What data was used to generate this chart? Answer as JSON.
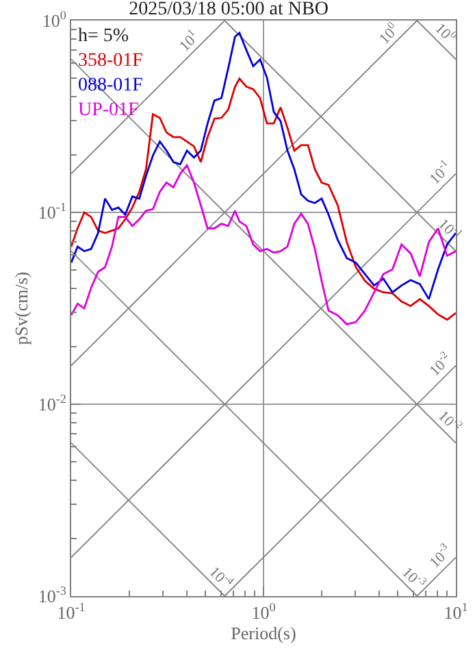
{
  "chart_data": {
    "type": "line",
    "title": "2025/03/18 05:00 at NBO",
    "xlabel": "Period(s)",
    "ylabel": "pSv(cm/s)",
    "log": "xy",
    "grid": true,
    "legend": "top left",
    "xlim": [
      0.1,
      10
    ],
    "ylim": [
      0.001,
      1
    ],
    "xticks": [
      {
        "value": 0.1,
        "label": "10$^{-1}$"
      },
      {
        "value": 0.2,
        "label": null
      },
      {
        "value": 0.3,
        "label": null
      },
      {
        "value": 0.4,
        "label": null
      },
      {
        "value": 0.5,
        "label": null
      },
      {
        "value": 0.6,
        "label": null
      },
      {
        "value": 0.7,
        "label": null
      },
      {
        "value": 0.8,
        "label": null
      },
      {
        "value": 0.9,
        "label": null
      },
      {
        "value": 1,
        "label": "10$^{0}$"
      },
      {
        "value": 2,
        "label": null
      },
      {
        "value": 3,
        "label": null
      },
      {
        "value": 4,
        "label": null
      },
      {
        "value": 5,
        "label": null
      },
      {
        "value": 6,
        "label": null
      },
      {
        "value": 7,
        "label": null
      },
      {
        "value": 8,
        "label": null
      },
      {
        "value": 9,
        "label": null
      },
      {
        "value": 10,
        "label": "10$^{1}$"
      }
    ],
    "yticks": [
      {
        "value": 0.001,
        "label": "10$^{-3}$"
      },
      {
        "value": 0.002,
        "label": null
      },
      {
        "value": 0.003,
        "label": null
      },
      {
        "value": 0.004,
        "label": null
      },
      {
        "value": 0.005,
        "label": null
      },
      {
        "value": 0.006,
        "label": null
      },
      {
        "value": 0.007,
        "label": null
      },
      {
        "value": 0.008,
        "label": null
      },
      {
        "value": 0.009,
        "label": null
      },
      {
        "value": 0.01,
        "label": "10$^{-2}$"
      },
      {
        "value": 0.02,
        "label": null
      },
      {
        "value": 0.03,
        "label": null
      },
      {
        "value": 0.04,
        "label": null
      },
      {
        "value": 0.05,
        "label": null
      },
      {
        "value": 0.06,
        "label": null
      },
      {
        "value": 0.07,
        "label": null
      },
      {
        "value": 0.08,
        "label": null
      },
      {
        "value": 0.09,
        "label": null
      },
      {
        "value": 0.1,
        "label": "10$^{-1}$"
      },
      {
        "value": 0.2,
        "label": null
      },
      {
        "value": 0.3,
        "label": null
      },
      {
        "value": 0.4,
        "label": null
      },
      {
        "value": 0.5,
        "label": null
      },
      {
        "value": 0.6,
        "label": null
      },
      {
        "value": 0.7,
        "label": null
      },
      {
        "value": 0.8,
        "label": null
      },
      {
        "value": 0.9,
        "label": null
      },
      {
        "value": 1,
        "label": "10$^{0}$"
      }
    ],
    "annotations": [
      "h= 5%",
      {
        "text": "10$^{1}$",
        "x": 0.45,
        "y": 0.716
      },
      {
        "text": "10$^{0}$",
        "x": 4.9,
        "y": 0.78
      },
      {
        "text": "10$^{-1}$",
        "x": 9.2,
        "y": 0.146
      },
      {
        "text": "10$^{-2}$",
        "x": 9.2,
        "y": 0.0146
      },
      {
        "text": "10$^{-3}$",
        "x": 9.2,
        "y": 0.00146
      },
      {
        "text": "10$^{0}$",
        "x": 8,
        "y": 0.785
      },
      {
        "text": "10$^{-1}$",
        "x": 8.5,
        "y": 0.0739
      },
      {
        "text": "10$^{-2}$",
        "x": 8.5,
        "y": 0.00739
      },
      {
        "text": "10$^{-3}$",
        "x": 5.5,
        "y": 0.00114
      },
      {
        "text": "10$^{-4}$",
        "x": 0.55,
        "y": 0.00114
      }
    ],
    "x": [
      0.1,
      0.108,
      0.117,
      0.127,
      0.138,
      0.15,
      0.163,
      0.176,
      0.191,
      0.208,
      0.226,
      0.245,
      0.266,
      0.289,
      0.313,
      0.34,
      0.369,
      0.4,
      0.435,
      0.472,
      0.512,
      0.556,
      0.604,
      0.655,
      0.711,
      0.75,
      0.815,
      0.884,
      0.96,
      1.042,
      1.131,
      1.227,
      1.332,
      1.446,
      1.57,
      1.703,
      1.849,
      2.006,
      2.178,
      2.43,
      2.71,
      3.02,
      3.37,
      3.76,
      4.2,
      4.68,
      5.22,
      5.82,
      6.5,
      7.24,
      8.08,
      9.01,
      10
    ],
    "series": [
      {
        "color": "#808080",
        "x": [
          0.1,
          0.628
        ],
        "values": [
          0.159,
          1
        ]
      },
      {
        "color": "#808080",
        "x": [
          0.1,
          6.283
        ],
        "values": [
          0.0159,
          1
        ]
      },
      {
        "color": "#808080",
        "x": [
          0.1,
          10
        ],
        "values": [
          0.00159,
          0.159
        ]
      },
      {
        "color": "#808080",
        "x": [
          0.628,
          10
        ],
        "values": [
          0.001,
          0.0159
        ]
      },
      {
        "color": "#808080",
        "x": [
          6.283,
          10
        ],
        "values": [
          0.001,
          0.00159
        ]
      },
      {
        "color": "#808080",
        "x": [
          6.283,
          10
        ],
        "values": [
          1,
          0.628
        ]
      },
      {
        "color": "#808080",
        "x": [
          0.628,
          10
        ],
        "values": [
          1,
          0.0628
        ]
      },
      {
        "color": "#808080",
        "x": [
          0.1,
          10
        ],
        "values": [
          0.628,
          0.00628
        ]
      },
      {
        "color": "#808080",
        "x": [
          0.1,
          6.283
        ],
        "values": [
          0.0628,
          0.001
        ]
      },
      {
        "color": "#808080",
        "x": [
          0.1,
          0.628
        ],
        "values": [
          0.00628,
          0.001
        ]
      },
      {
        "name": "358-01F",
        "color": "#dd0000",
        "values": [
          0.0663,
          0.0826,
          0.1,
          0.0947,
          0.0803,
          0.0781,
          0.0803,
          0.0826,
          0.0921,
          0.106,
          0.128,
          0.168,
          0.325,
          0.311,
          0.261,
          0.247,
          0.247,
          0.234,
          0.221,
          0.183,
          0.247,
          0.308,
          0.311,
          0.343,
          0.452,
          0.498,
          0.452,
          0.439,
          0.394,
          0.291,
          0.291,
          0.353,
          0.276,
          0.21,
          0.224,
          0.224,
          0.168,
          0.143,
          0.139,
          0.109,
          0.07,
          0.0518,
          0.0439,
          0.04,
          0.0383,
          0.0379,
          0.0343,
          0.0325,
          0.0353,
          0.0325,
          0.0294,
          0.0276,
          0.0299
        ]
      },
      {
        "name": "088-01F",
        "color": "#0000dd",
        "values": [
          0.0547,
          0.0663,
          0.0628,
          0.0645,
          0.0781,
          0.118,
          0.103,
          0.106,
          0.0973,
          0.121,
          0.118,
          0.155,
          0.198,
          0.234,
          0.21,
          0.183,
          0.178,
          0.21,
          0.193,
          0.21,
          0.291,
          0.383,
          0.394,
          0.562,
          0.825,
          0.862,
          0.7,
          0.578,
          0.627,
          0.504,
          0.334,
          0.299,
          0.21,
          0.168,
          0.124,
          0.115,
          0.112,
          0.118,
          0.0973,
          0.072,
          0.0578,
          0.0547,
          0.0477,
          0.0416,
          0.0451,
          0.0383,
          0.0416,
          0.0444,
          0.0423,
          0.0353,
          0.0504,
          0.0681,
          0.0781
        ]
      },
      {
        "name": "UP-01F",
        "color": "#dd00dd",
        "values": [
          0.0291,
          0.0334,
          0.0316,
          0.0405,
          0.049,
          0.0518,
          0.0663,
          0.0947,
          0.0947,
          0.0849,
          0.0921,
          0.102,
          0.104,
          0.128,
          0.143,
          0.135,
          0.159,
          0.176,
          0.143,
          0.109,
          0.0826,
          0.0826,
          0.0872,
          0.0849,
          0.102,
          0.0896,
          0.0849,
          0.0681,
          0.0628,
          0.0645,
          0.0617,
          0.0628,
          0.0663,
          0.0872,
          0.0984,
          0.0872,
          0.0645,
          0.0439,
          0.0308,
          0.0291,
          0.0261,
          0.0268,
          0.0308,
          0.0383,
          0.0477,
          0.0504,
          0.0681,
          0.0611,
          0.0464,
          0.07,
          0.0826,
          0.0594,
          0.0628
        ]
      }
    ]
  }
}
